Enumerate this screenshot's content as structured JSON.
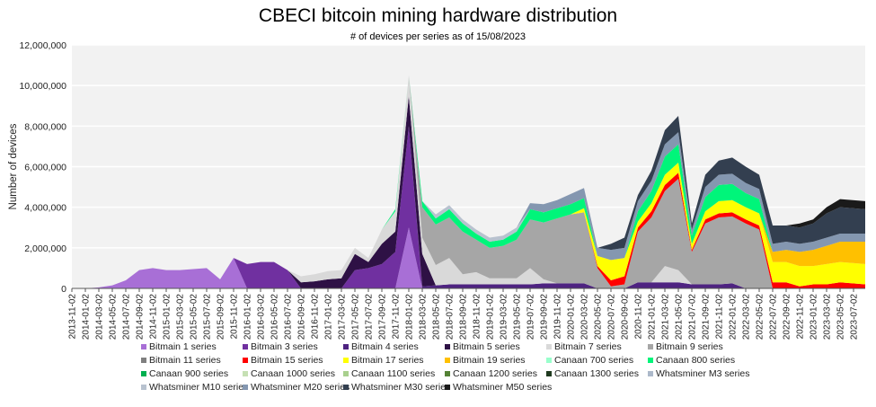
{
  "chart_data": {
    "type": "area",
    "stacked": true,
    "title": "CBECI bitcoin mining hardware distribution",
    "subtitle": "# of devices per series as of 15/08/2023",
    "xlabel": "",
    "ylabel": "Number of devices",
    "ylim": [
      0,
      12000000
    ],
    "yticks": [
      0,
      2000000,
      4000000,
      6000000,
      8000000,
      10000000,
      12000000
    ],
    "ytick_labels": [
      "0",
      "2,000,000",
      "4,000,000",
      "6,000,000",
      "8,000,000",
      "10,000,000",
      "12,000,000"
    ],
    "grid": true,
    "legend_position": "bottom",
    "x": [
      "2013-11-02",
      "2014-01-02",
      "2014-03-02",
      "2014-05-02",
      "2014-07-02",
      "2014-09-02",
      "2014-11-02",
      "2015-01-02",
      "2015-03-02",
      "2015-05-02",
      "2015-07-02",
      "2015-09-02",
      "2015-11-02",
      "2016-01-02",
      "2016-03-02",
      "2016-05-02",
      "2016-07-02",
      "2016-09-02",
      "2016-11-02",
      "2017-01-02",
      "2017-03-02",
      "2017-05-02",
      "2017-07-02",
      "2017-09-02",
      "2017-11-02",
      "2018-01-02",
      "2018-03-02",
      "2018-05-02",
      "2018-07-02",
      "2018-09-02",
      "2018-11-02",
      "2019-01-02",
      "2019-03-02",
      "2019-05-02",
      "2019-07-02",
      "2019-09-02",
      "2019-11-02",
      "2020-01-02",
      "2020-03-02",
      "2020-05-02",
      "2020-07-02",
      "2020-09-02",
      "2020-11-02",
      "2021-01-02",
      "2021-03-02",
      "2021-05-02",
      "2021-07-02",
      "2021-09-02",
      "2021-11-02",
      "2022-01-02",
      "2022-03-02",
      "2022-05-02",
      "2022-07-02",
      "2022-09-02",
      "2022-11-02",
      "2023-01-02",
      "2023-03-02",
      "2023-05-02",
      "2023-07-02"
    ],
    "series": [
      {
        "name": "Bitmain 1 series",
        "color": "#a86fd6",
        "values": [
          0,
          0,
          50000,
          150000,
          400000,
          900000,
          1000000,
          900000,
          900000,
          950000,
          1000000,
          450000,
          1500000,
          0,
          0,
          0,
          0,
          0,
          0,
          0,
          0,
          0,
          0,
          0,
          0,
          3000000,
          0,
          0,
          0,
          0,
          0,
          0,
          0,
          0,
          0,
          0,
          0,
          0,
          0,
          0,
          0,
          0,
          0,
          0,
          0,
          0,
          0,
          0,
          0,
          0,
          0,
          0,
          0,
          0,
          0,
          0,
          0,
          0,
          0
        ]
      },
      {
        "name": "Bitmain 3 series",
        "color": "#7030a0",
        "values": [
          0,
          0,
          0,
          0,
          0,
          0,
          0,
          0,
          0,
          0,
          0,
          0,
          0,
          1200000,
          1300000,
          1300000,
          900000,
          0,
          0,
          0,
          0,
          900000,
          1000000,
          1200000,
          1800000,
          5000000,
          0,
          0,
          0,
          0,
          0,
          0,
          0,
          0,
          0,
          0,
          0,
          0,
          0,
          0,
          0,
          0,
          0,
          0,
          0,
          0,
          0,
          0,
          0,
          0,
          0,
          0,
          0,
          0,
          0,
          0,
          0,
          0,
          0
        ]
      },
      {
        "name": "Bitmain 4 series",
        "color": "#4e2381",
        "values": [
          0,
          0,
          0,
          0,
          0,
          0,
          0,
          0,
          0,
          0,
          0,
          0,
          0,
          0,
          0,
          0,
          0,
          0,
          0,
          0,
          0,
          0,
          0,
          0,
          0,
          0,
          100000,
          150000,
          200000,
          200000,
          200000,
          200000,
          200000,
          200000,
          200000,
          250000,
          250000,
          250000,
          250000,
          0,
          0,
          0,
          300000,
          300000,
          300000,
          300000,
          200000,
          200000,
          200000,
          250000,
          0,
          0,
          0,
          0,
          0,
          0,
          0,
          0,
          0
        ]
      },
      {
        "name": "Bitmain 5 series",
        "color": "#2e1145",
        "values": [
          0,
          0,
          0,
          0,
          0,
          0,
          0,
          0,
          0,
          0,
          0,
          0,
          0,
          0,
          0,
          0,
          0,
          300000,
          350000,
          450000,
          500000,
          800000,
          300000,
          1000000,
          1000000,
          1500000,
          1600000,
          0,
          0,
          0,
          0,
          0,
          0,
          0,
          0,
          0,
          0,
          0,
          0,
          0,
          0,
          0,
          0,
          0,
          0,
          0,
          0,
          0,
          0,
          0,
          0,
          0,
          0,
          0,
          0,
          0,
          0,
          0,
          0
        ]
      },
      {
        "name": "Bitmain 7 series",
        "color": "#d9d9d9",
        "values": [
          0,
          0,
          0,
          0,
          0,
          0,
          0,
          0,
          0,
          0,
          0,
          0,
          0,
          0,
          0,
          0,
          0,
          300000,
          350000,
          400000,
          400000,
          300000,
          200000,
          700000,
          1000000,
          1000000,
          800000,
          1000000,
          1300000,
          500000,
          600000,
          300000,
          300000,
          300000,
          800000,
          200000,
          0,
          0,
          0,
          0,
          0,
          0,
          0,
          0,
          800000,
          600000,
          0,
          0,
          0,
          0,
          0,
          0,
          0,
          0,
          0,
          0,
          0,
          0,
          0
        ]
      },
      {
        "name": "Bitmain 9 series",
        "color": "#a6a6a6",
        "values": [
          0,
          0,
          0,
          0,
          0,
          0,
          0,
          0,
          0,
          0,
          0,
          0,
          0,
          0,
          0,
          0,
          0,
          0,
          0,
          0,
          0,
          0,
          0,
          0,
          0,
          0,
          1500000,
          2000000,
          2000000,
          2100000,
          1600000,
          1500000,
          1600000,
          1900000,
          2400000,
          2800000,
          3200000,
          3400000,
          3500000,
          1000000,
          100000,
          200000,
          2500000,
          3200000,
          3700000,
          4500000,
          1600000,
          3000000,
          3300000,
          3300000,
          3200000,
          2900000,
          0,
          0,
          0,
          0,
          0,
          0,
          0
        ]
      },
      {
        "name": "Bitmain 11 series",
        "color": "#7f7f7f"
      },
      {
        "name": "Bitmain 15 series",
        "color": "#ff0000",
        "values": [
          0,
          0,
          0,
          0,
          0,
          0,
          0,
          0,
          0,
          0,
          0,
          0,
          0,
          0,
          0,
          0,
          0,
          0,
          0,
          0,
          0,
          0,
          0,
          0,
          0,
          0,
          0,
          0,
          0,
          0,
          0,
          0,
          0,
          0,
          0,
          0,
          0,
          0,
          0,
          100000,
          300000,
          400000,
          200000,
          300000,
          300000,
          300000,
          100000,
          200000,
          200000,
          200000,
          200000,
          200000,
          300000,
          300000,
          100000,
          200000,
          200000,
          300000,
          200000
        ]
      },
      {
        "name": "Bitmain 17 series",
        "color": "#ffff00",
        "values": [
          0,
          0,
          0,
          0,
          0,
          0,
          0,
          0,
          0,
          0,
          0,
          0,
          0,
          0,
          0,
          0,
          0,
          0,
          0,
          0,
          0,
          0,
          0,
          0,
          0,
          0,
          0,
          0,
          0,
          0,
          0,
          0,
          0,
          0,
          0,
          0,
          0,
          0,
          200000,
          500000,
          1000000,
          900000,
          300000,
          400000,
          500000,
          500000,
          300000,
          400000,
          600000,
          600000,
          600000,
          600000,
          1000000,
          1000000,
          1000000,
          900000,
          1000000,
          1000000,
          1000000
        ]
      },
      {
        "name": "Bitmain 19 series",
        "color": "#ffc000",
        "values": [
          0,
          0,
          0,
          0,
          0,
          0,
          0,
          0,
          0,
          0,
          0,
          0,
          0,
          0,
          0,
          0,
          0,
          0,
          0,
          0,
          0,
          0,
          0,
          0,
          0,
          0,
          0,
          0,
          0,
          0,
          0,
          0,
          0,
          0,
          0,
          0,
          0,
          0,
          0,
          0,
          0,
          0,
          0,
          0,
          0,
          0,
          0,
          0,
          0,
          0,
          0,
          0,
          500000,
          600000,
          700000,
          800000,
          900000,
          1000000,
          1100000
        ]
      },
      {
        "name": "Canaan 700 series",
        "color": "#99ffcc"
      },
      {
        "name": "Canaan 800 series",
        "color": "#00f57a",
        "values": [
          0,
          0,
          0,
          0,
          0,
          0,
          0,
          0,
          0,
          0,
          0,
          0,
          0,
          0,
          0,
          0,
          0,
          0,
          0,
          0,
          0,
          0,
          0,
          0,
          100000,
          0,
          300000,
          300000,
          400000,
          400000,
          300000,
          300000,
          300000,
          400000,
          500000,
          500000,
          500000,
          500000,
          500000,
          0,
          0,
          0,
          500000,
          600000,
          900000,
          900000,
          400000,
          700000,
          800000,
          800000,
          700000,
          700000,
          0,
          0,
          0,
          0,
          0,
          0,
          0
        ]
      },
      {
        "name": "Canaan 900 series",
        "color": "#00b050"
      },
      {
        "name": "Canaan 1000 series",
        "color": "#c6e0b4"
      },
      {
        "name": "Canaan 1100 series",
        "color": "#a9d08e"
      },
      {
        "name": "Canaan 1200 series",
        "color": "#548235"
      },
      {
        "name": "Canaan 1300 series",
        "color": "#1f3a1f"
      },
      {
        "name": "Whatsminer M3 series",
        "color": "#acb9ca"
      },
      {
        "name": "Whatsminer M10 series",
        "color": "#b8c2cf",
        "values": [
          0,
          0,
          0,
          0,
          0,
          0,
          0,
          0,
          0,
          0,
          0,
          0,
          0,
          0,
          0,
          0,
          0,
          0,
          0,
          0,
          0,
          0,
          0,
          0,
          0,
          0,
          0,
          200000,
          200000,
          200000,
          200000,
          200000,
          200000,
          200000,
          0,
          0,
          0,
          0,
          0,
          0,
          0,
          0,
          0,
          0,
          0,
          0,
          0,
          0,
          0,
          0,
          0,
          0,
          0,
          0,
          0,
          0,
          0,
          0,
          0
        ]
      },
      {
        "name": "Whatsminer M20 series",
        "color": "#8497b0",
        "values": [
          0,
          0,
          0,
          0,
          0,
          0,
          0,
          0,
          0,
          0,
          0,
          0,
          0,
          0,
          0,
          0,
          0,
          0,
          0,
          0,
          0,
          0,
          0,
          0,
          0,
          0,
          0,
          0,
          0,
          0,
          0,
          0,
          0,
          0,
          300000,
          400000,
          400000,
          500000,
          500000,
          400000,
          500000,
          500000,
          500000,
          500000,
          600000,
          600000,
          300000,
          500000,
          500000,
          500000,
          500000,
          500000,
          400000,
          400000,
          400000,
          400000,
          400000,
          400000,
          400000
        ]
      },
      {
        "name": "Whatsminer M30 series",
        "color": "#333f50",
        "values": [
          0,
          0,
          0,
          0,
          0,
          0,
          0,
          0,
          0,
          0,
          0,
          0,
          0,
          0,
          0,
          0,
          0,
          0,
          0,
          0,
          0,
          0,
          0,
          0,
          0,
          0,
          0,
          0,
          0,
          0,
          0,
          0,
          0,
          0,
          0,
          0,
          0,
          0,
          0,
          0,
          300000,
          500000,
          300000,
          500000,
          700000,
          800000,
          300000,
          600000,
          700000,
          800000,
          800000,
          700000,
          900000,
          800000,
          800000,
          900000,
          1200000,
          1300000,
          1200000
        ]
      },
      {
        "name": "Whatsminer M50 series",
        "color": "#1a1a1a",
        "values": [
          0,
          0,
          0,
          0,
          0,
          0,
          0,
          0,
          0,
          0,
          0,
          0,
          0,
          0,
          0,
          0,
          0,
          0,
          0,
          0,
          0,
          0,
          0,
          0,
          0,
          0,
          0,
          0,
          0,
          0,
          0,
          0,
          0,
          0,
          0,
          0,
          0,
          0,
          0,
          0,
          0,
          0,
          0,
          0,
          0,
          0,
          0,
          0,
          0,
          0,
          0,
          0,
          0,
          0,
          200000,
          200000,
          300000,
          400000,
          400000
        ]
      }
    ]
  }
}
